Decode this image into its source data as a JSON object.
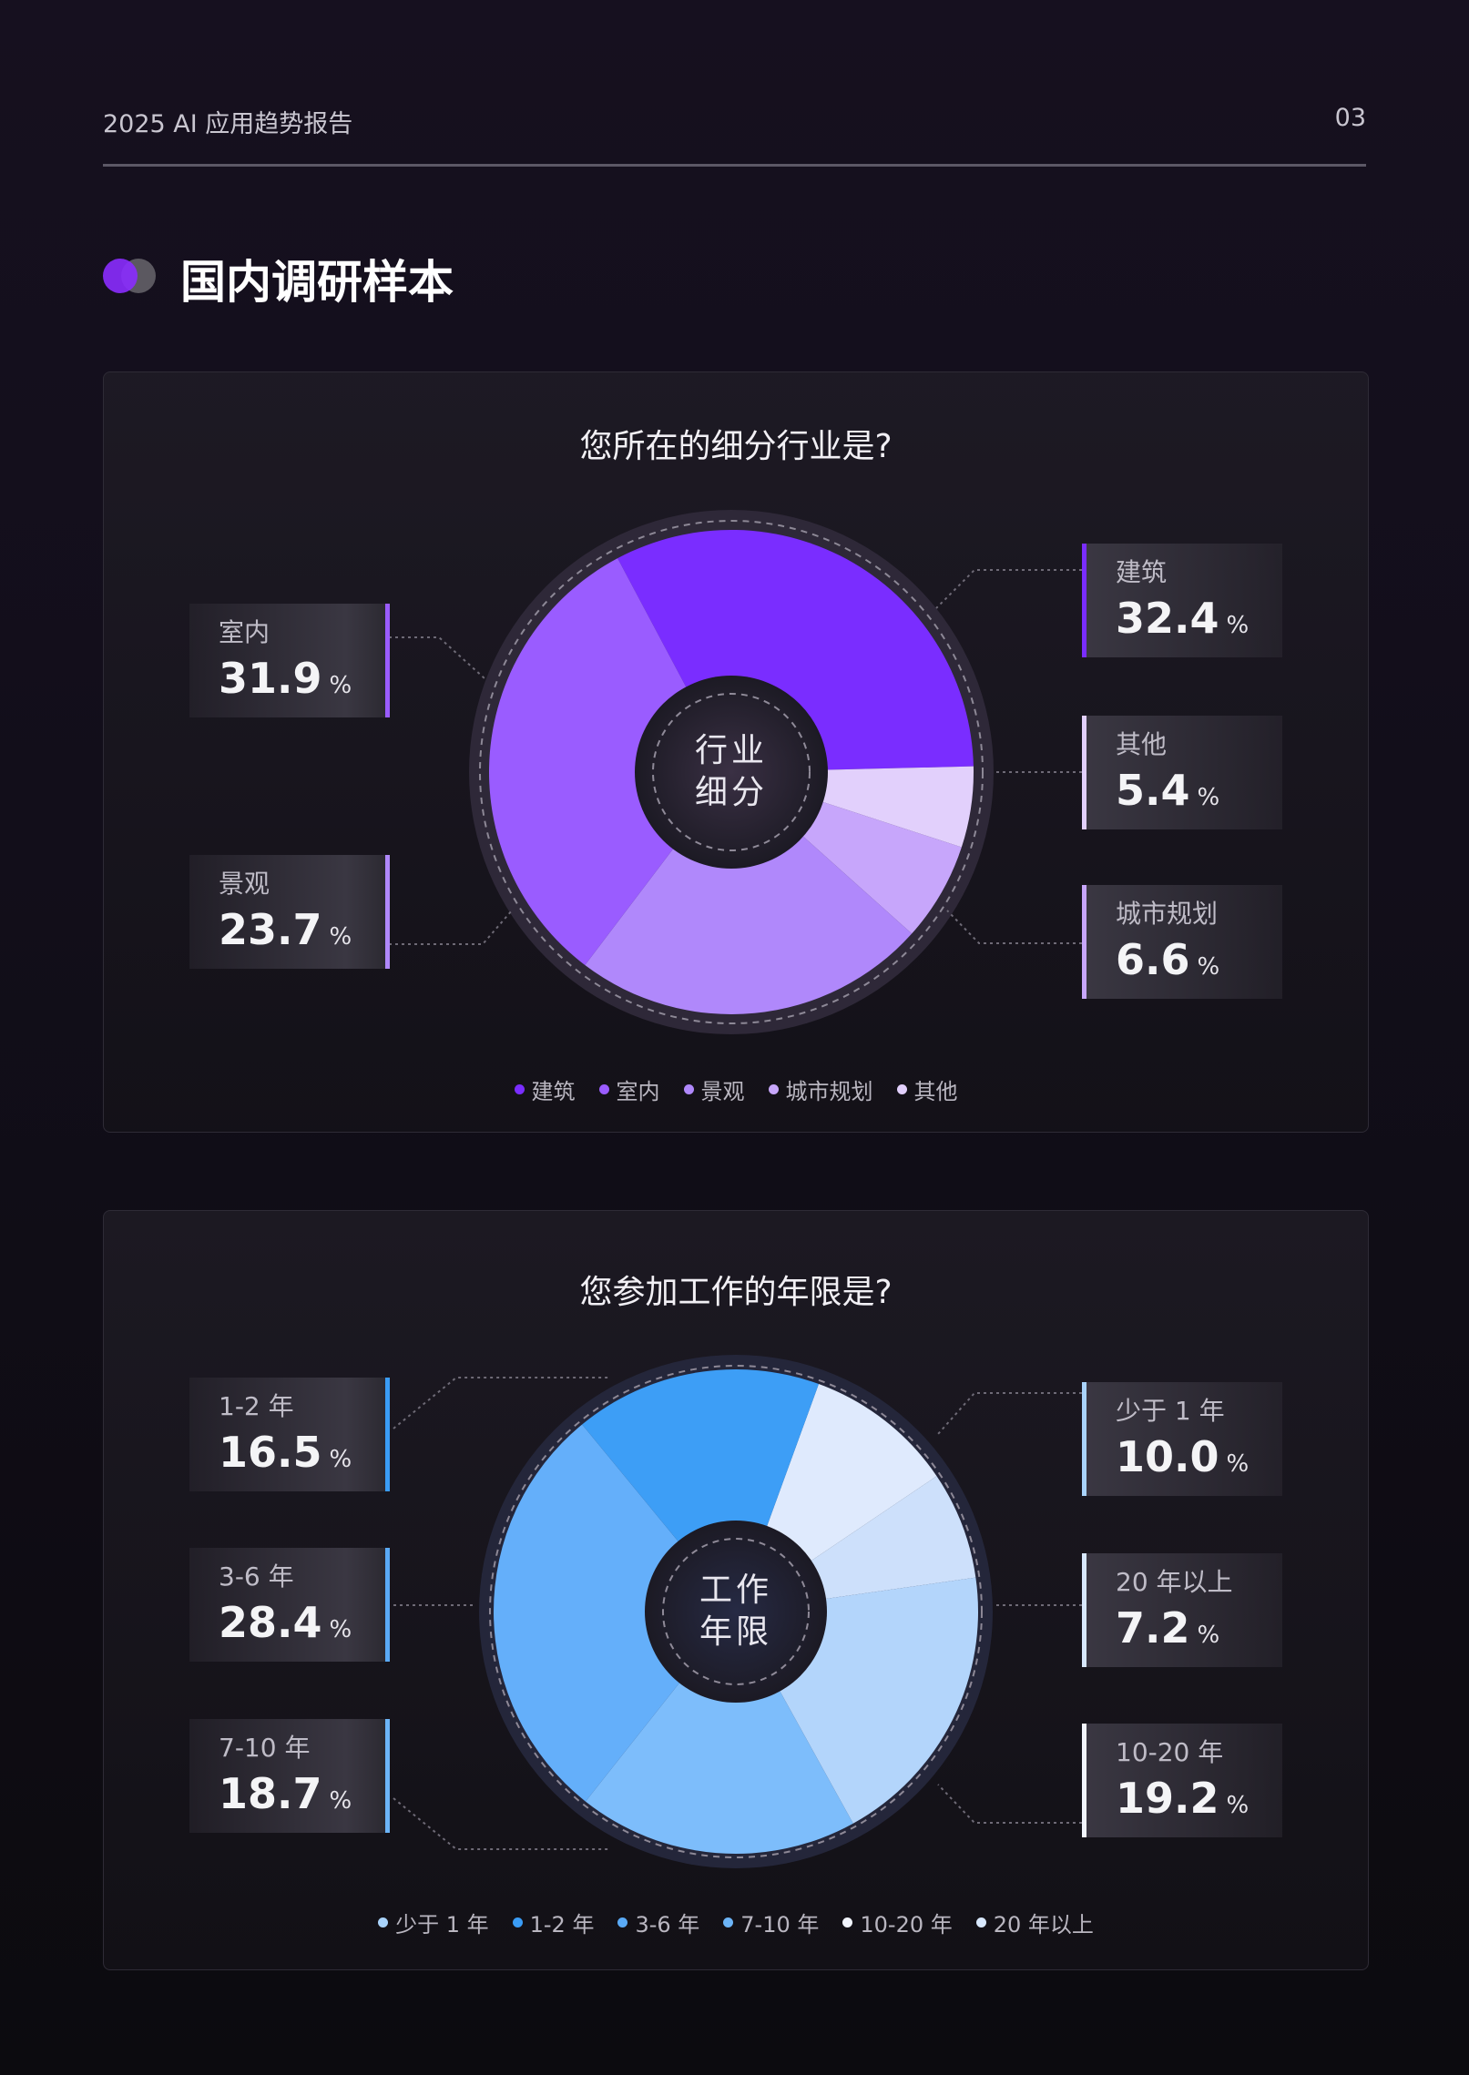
{
  "header": {
    "title": "2025 AI 应用趋势报告",
    "page": "03"
  },
  "section": {
    "title": "国内调研样本"
  },
  "chart_data": [
    {
      "type": "pie",
      "title": "您所在的细分行业是?",
      "center_label": [
        "行业",
        "细分"
      ],
      "categories": [
        "建筑",
        "室内",
        "景观",
        "城市规划",
        "其他"
      ],
      "values": [
        32.4,
        31.9,
        23.7,
        6.6,
        5.4
      ],
      "colors": [
        "#7a2dff",
        "#9a5cff",
        "#b088fb",
        "#c7a6fb",
        "#e2d0fc"
      ],
      "legend": "bottom",
      "unit": "%"
    },
    {
      "type": "pie",
      "title": "您参加工作的年限是?",
      "center_label": [
        "工作",
        "年限"
      ],
      "categories": [
        "少于 1 年",
        "1-2 年",
        "3-6 年",
        "7-10 年",
        "10-20 年",
        "20 年以上"
      ],
      "values": [
        10.0,
        16.5,
        28.4,
        18.7,
        19.2,
        7.2
      ],
      "colors": [
        "#dfeafd",
        "#3d9ef6",
        "#64affa",
        "#7dbdfb",
        "#b3d5fb",
        "#cde0fb"
      ],
      "legend_colors": [
        "#a9d3fb",
        "#3a9cf5",
        "#5aaaf6",
        "#6cb4f7",
        "#f2f5fd",
        "#d8e8fd"
      ],
      "legend": "bottom",
      "unit": "%"
    }
  ]
}
